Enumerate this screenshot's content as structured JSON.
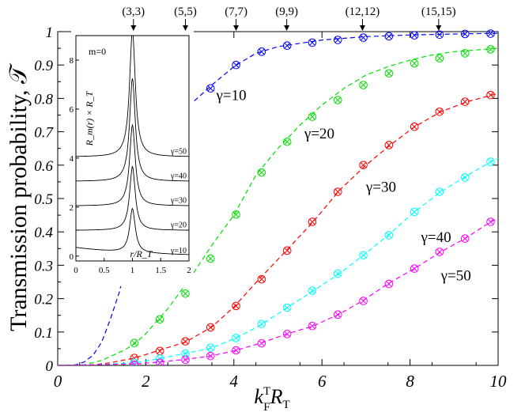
{
  "chart_data": [
    {
      "type": "line",
      "ylabel": "Transmission probability, 𝒯",
      "xlabel_main": "k",
      "xlabel_sup": "T",
      "xlabel_sub": "F",
      "xlabel_r": "R",
      "xlabel_rsub": "T",
      "xlim": [
        0,
        10
      ],
      "ylim": [
        0,
        1
      ],
      "x_ticks": [
        "0",
        "2",
        "4",
        "6",
        "8",
        "10"
      ],
      "y_ticks": [
        "0",
        "0.1",
        "0.2",
        "0.3",
        "0.4",
        "0.5",
        "0.6",
        "0.7",
        "0.8",
        "0.9",
        "1"
      ],
      "top_markers": [
        {
          "label": "(3,3)",
          "x": 1.72
        },
        {
          "label": "(5,5)",
          "x": 2.9
        },
        {
          "label": "(7,7)",
          "x": 4.05
        },
        {
          "label": "(9,9)",
          "x": 5.2
        },
        {
          "label": "(12,12)",
          "x": 6.92
        },
        {
          "label": "(15,15)",
          "x": 8.65
        }
      ],
      "series": [
        {
          "name": "γ=10",
          "color": "#0000ff",
          "label_at": [
            3.6,
            0.795
          ],
          "curve": [
            [
              0,
              0
            ],
            [
              0.4,
              0.002
            ],
            [
              0.6,
              0.01
            ],
            [
              0.8,
              0.03
            ],
            [
              1.0,
              0.07
            ],
            [
              1.2,
              0.14
            ],
            [
              1.4,
              0.22
            ],
            [
              1.6,
              0.33
            ],
            [
              1.8,
              0.44
            ],
            [
              2.0,
              0.55
            ],
            [
              2.2,
              0.63
            ],
            [
              2.5,
              0.71
            ],
            [
              3.0,
              0.78
            ],
            [
              3.5,
              0.84
            ],
            [
              4.0,
              0.895
            ],
            [
              4.5,
              0.935
            ],
            [
              5.0,
              0.955
            ],
            [
              5.5,
              0.965
            ],
            [
              6.0,
              0.975
            ],
            [
              7.0,
              0.985
            ],
            [
              8.0,
              0.99
            ],
            [
              9.0,
              0.993
            ],
            [
              10.0,
              0.995
            ]
          ],
          "points": [
            [
              3.47,
              0.83
            ],
            [
              4.05,
              0.9
            ],
            [
              4.63,
              0.94
            ],
            [
              5.21,
              0.958
            ],
            [
              5.78,
              0.967
            ],
            [
              6.36,
              0.975
            ],
            [
              6.94,
              0.982
            ],
            [
              7.52,
              0.986
            ],
            [
              8.1,
              0.989
            ],
            [
              8.67,
              0.991
            ],
            [
              9.25,
              0.993
            ],
            [
              9.83,
              0.994
            ]
          ]
        },
        {
          "name": "γ=20",
          "color": "#00e000",
          "label_at": [
            5.6,
            0.68
          ],
          "curve": [
            [
              0,
              0
            ],
            [
              0.6,
              0.002
            ],
            [
              1.0,
              0.015
            ],
            [
              1.5,
              0.045
            ],
            [
              1.75,
              0.065
            ],
            [
              2.0,
              0.095
            ],
            [
              2.5,
              0.17
            ],
            [
              3.0,
              0.26
            ],
            [
              3.5,
              0.36
            ],
            [
              4.0,
              0.45
            ],
            [
              4.5,
              0.57
            ],
            [
              5.0,
              0.65
            ],
            [
              5.5,
              0.72
            ],
            [
              6.0,
              0.78
            ],
            [
              6.5,
              0.83
            ],
            [
              7.0,
              0.87
            ],
            [
              7.5,
              0.895
            ],
            [
              8.0,
              0.915
            ],
            [
              8.5,
              0.93
            ],
            [
              9.0,
              0.94
            ],
            [
              9.5,
              0.945
            ],
            [
              10.0,
              0.95
            ]
          ],
          "points": [
            [
              1.74,
              0.067
            ],
            [
              2.32,
              0.138
            ],
            [
              2.9,
              0.215
            ],
            [
              3.47,
              0.32
            ],
            [
              4.05,
              0.452
            ],
            [
              4.63,
              0.578
            ],
            [
              5.21,
              0.67
            ],
            [
              5.78,
              0.745
            ],
            [
              6.36,
              0.795
            ],
            [
              6.94,
              0.84
            ],
            [
              7.52,
              0.875
            ],
            [
              8.1,
              0.905
            ],
            [
              8.67,
              0.92
            ],
            [
              9.25,
              0.935
            ],
            [
              9.83,
              0.947
            ]
          ]
        },
        {
          "name": "γ=30",
          "color": "#ff0000",
          "label_at": [
            7.0,
            0.52
          ],
          "curve": [
            [
              0,
              0
            ],
            [
              0.8,
              0.002
            ],
            [
              1.2,
              0.008
            ],
            [
              1.75,
              0.022
            ],
            [
              2.3,
              0.045
            ],
            [
              2.9,
              0.07
            ],
            [
              3.5,
              0.115
            ],
            [
              4.0,
              0.175
            ],
            [
              4.6,
              0.262
            ],
            [
              5.2,
              0.345
            ],
            [
              5.8,
              0.43
            ],
            [
              6.4,
              0.525
            ],
            [
              7.0,
              0.6
            ],
            [
              7.5,
              0.655
            ],
            [
              8.1,
              0.715
            ],
            [
              8.7,
              0.76
            ],
            [
              9.3,
              0.79
            ],
            [
              10.0,
              0.815
            ]
          ],
          "points": [
            [
              1.74,
              0.022
            ],
            [
              2.32,
              0.043
            ],
            [
              2.9,
              0.072
            ],
            [
              3.47,
              0.114
            ],
            [
              4.05,
              0.178
            ],
            [
              4.63,
              0.258
            ],
            [
              5.21,
              0.344
            ],
            [
              5.78,
              0.43
            ],
            [
              6.36,
              0.52
            ],
            [
              6.94,
              0.6
            ],
            [
              7.52,
              0.66
            ],
            [
              8.1,
              0.715
            ],
            [
              8.67,
              0.76
            ],
            [
              9.25,
              0.79
            ],
            [
              9.83,
              0.81
            ]
          ]
        },
        {
          "name": "γ=40",
          "color": "#00ffff",
          "label_at": [
            8.25,
            0.37
          ],
          "curve": [
            [
              0,
              0
            ],
            [
              1.0,
              0.003
            ],
            [
              1.75,
              0.008
            ],
            [
              2.3,
              0.02
            ],
            [
              2.9,
              0.036
            ],
            [
              3.5,
              0.052
            ],
            [
              4.05,
              0.082
            ],
            [
              4.6,
              0.12
            ],
            [
              5.2,
              0.172
            ],
            [
              5.8,
              0.223
            ],
            [
              6.4,
              0.275
            ],
            [
              6.94,
              0.33
            ],
            [
              7.5,
              0.39
            ],
            [
              8.1,
              0.46
            ],
            [
              8.7,
              0.52
            ],
            [
              9.25,
              0.565
            ],
            [
              9.83,
              0.61
            ],
            [
              10.0,
              0.62
            ]
          ],
          "points": [
            [
              1.74,
              0.008
            ],
            [
              2.32,
              0.02
            ],
            [
              2.9,
              0.035
            ],
            [
              3.47,
              0.053
            ],
            [
              4.05,
              0.082
            ],
            [
              4.63,
              0.124
            ],
            [
              5.21,
              0.173
            ],
            [
              5.78,
              0.224
            ],
            [
              6.36,
              0.275
            ],
            [
              6.94,
              0.33
            ],
            [
              7.52,
              0.39
            ],
            [
              8.1,
              0.46
            ],
            [
              8.67,
              0.52
            ],
            [
              9.25,
              0.563
            ],
            [
              9.83,
              0.61
            ]
          ]
        },
        {
          "name": "γ=50",
          "color": "#ff00ff",
          "label_at": [
            8.7,
            0.255
          ],
          "curve": [
            [
              0,
              0
            ],
            [
              1.2,
              0.003
            ],
            [
              1.75,
              0.004
            ],
            [
              2.3,
              0.01
            ],
            [
              2.9,
              0.018
            ],
            [
              3.5,
              0.029
            ],
            [
              4.05,
              0.045
            ],
            [
              4.6,
              0.066
            ],
            [
              5.2,
              0.094
            ],
            [
              5.8,
              0.118
            ],
            [
              6.4,
              0.154
            ],
            [
              6.94,
              0.195
            ],
            [
              7.5,
              0.245
            ],
            [
              8.1,
              0.29
            ],
            [
              8.7,
              0.34
            ],
            [
              9.25,
              0.38
            ],
            [
              9.83,
              0.43
            ],
            [
              10.0,
              0.44
            ]
          ],
          "points": [
            [
              1.74,
              0.002
            ],
            [
              2.32,
              0.008
            ],
            [
              2.9,
              0.017
            ],
            [
              3.47,
              0.028
            ],
            [
              4.05,
              0.045
            ],
            [
              4.63,
              0.066
            ],
            [
              5.21,
              0.094
            ],
            [
              5.78,
              0.118
            ],
            [
              6.36,
              0.152
            ],
            [
              6.94,
              0.193
            ],
            [
              7.52,
              0.244
            ],
            [
              8.1,
              0.29
            ],
            [
              8.67,
              0.34
            ],
            [
              9.25,
              0.38
            ],
            [
              9.83,
              0.43
            ]
          ]
        }
      ]
    },
    {
      "type": "line",
      "annotation": "m=0",
      "ylabel": "R_m(r) × R_T",
      "xlabel": "r/R_T",
      "xlim": [
        0,
        2
      ],
      "ylim": [
        -0.2,
        9
      ],
      "x_ticks": [
        "0",
        "0.5",
        "1",
        "1.5",
        "2"
      ],
      "y_ticks": [
        "0",
        "2",
        "4",
        "6",
        "8"
      ],
      "series": [
        {
          "name": "γ=10",
          "offset": 0,
          "peak": 1.8
        },
        {
          "name": "γ=20",
          "offset": 1.05,
          "peak": 2.6
        },
        {
          "name": "γ=30",
          "offset": 2.05,
          "peak": 3.3
        },
        {
          "name": "γ=40",
          "offset": 3.05,
          "peak": 4.2
        },
        {
          "name": "γ=50",
          "offset": 4.05,
          "peak": 5.2
        }
      ]
    }
  ]
}
